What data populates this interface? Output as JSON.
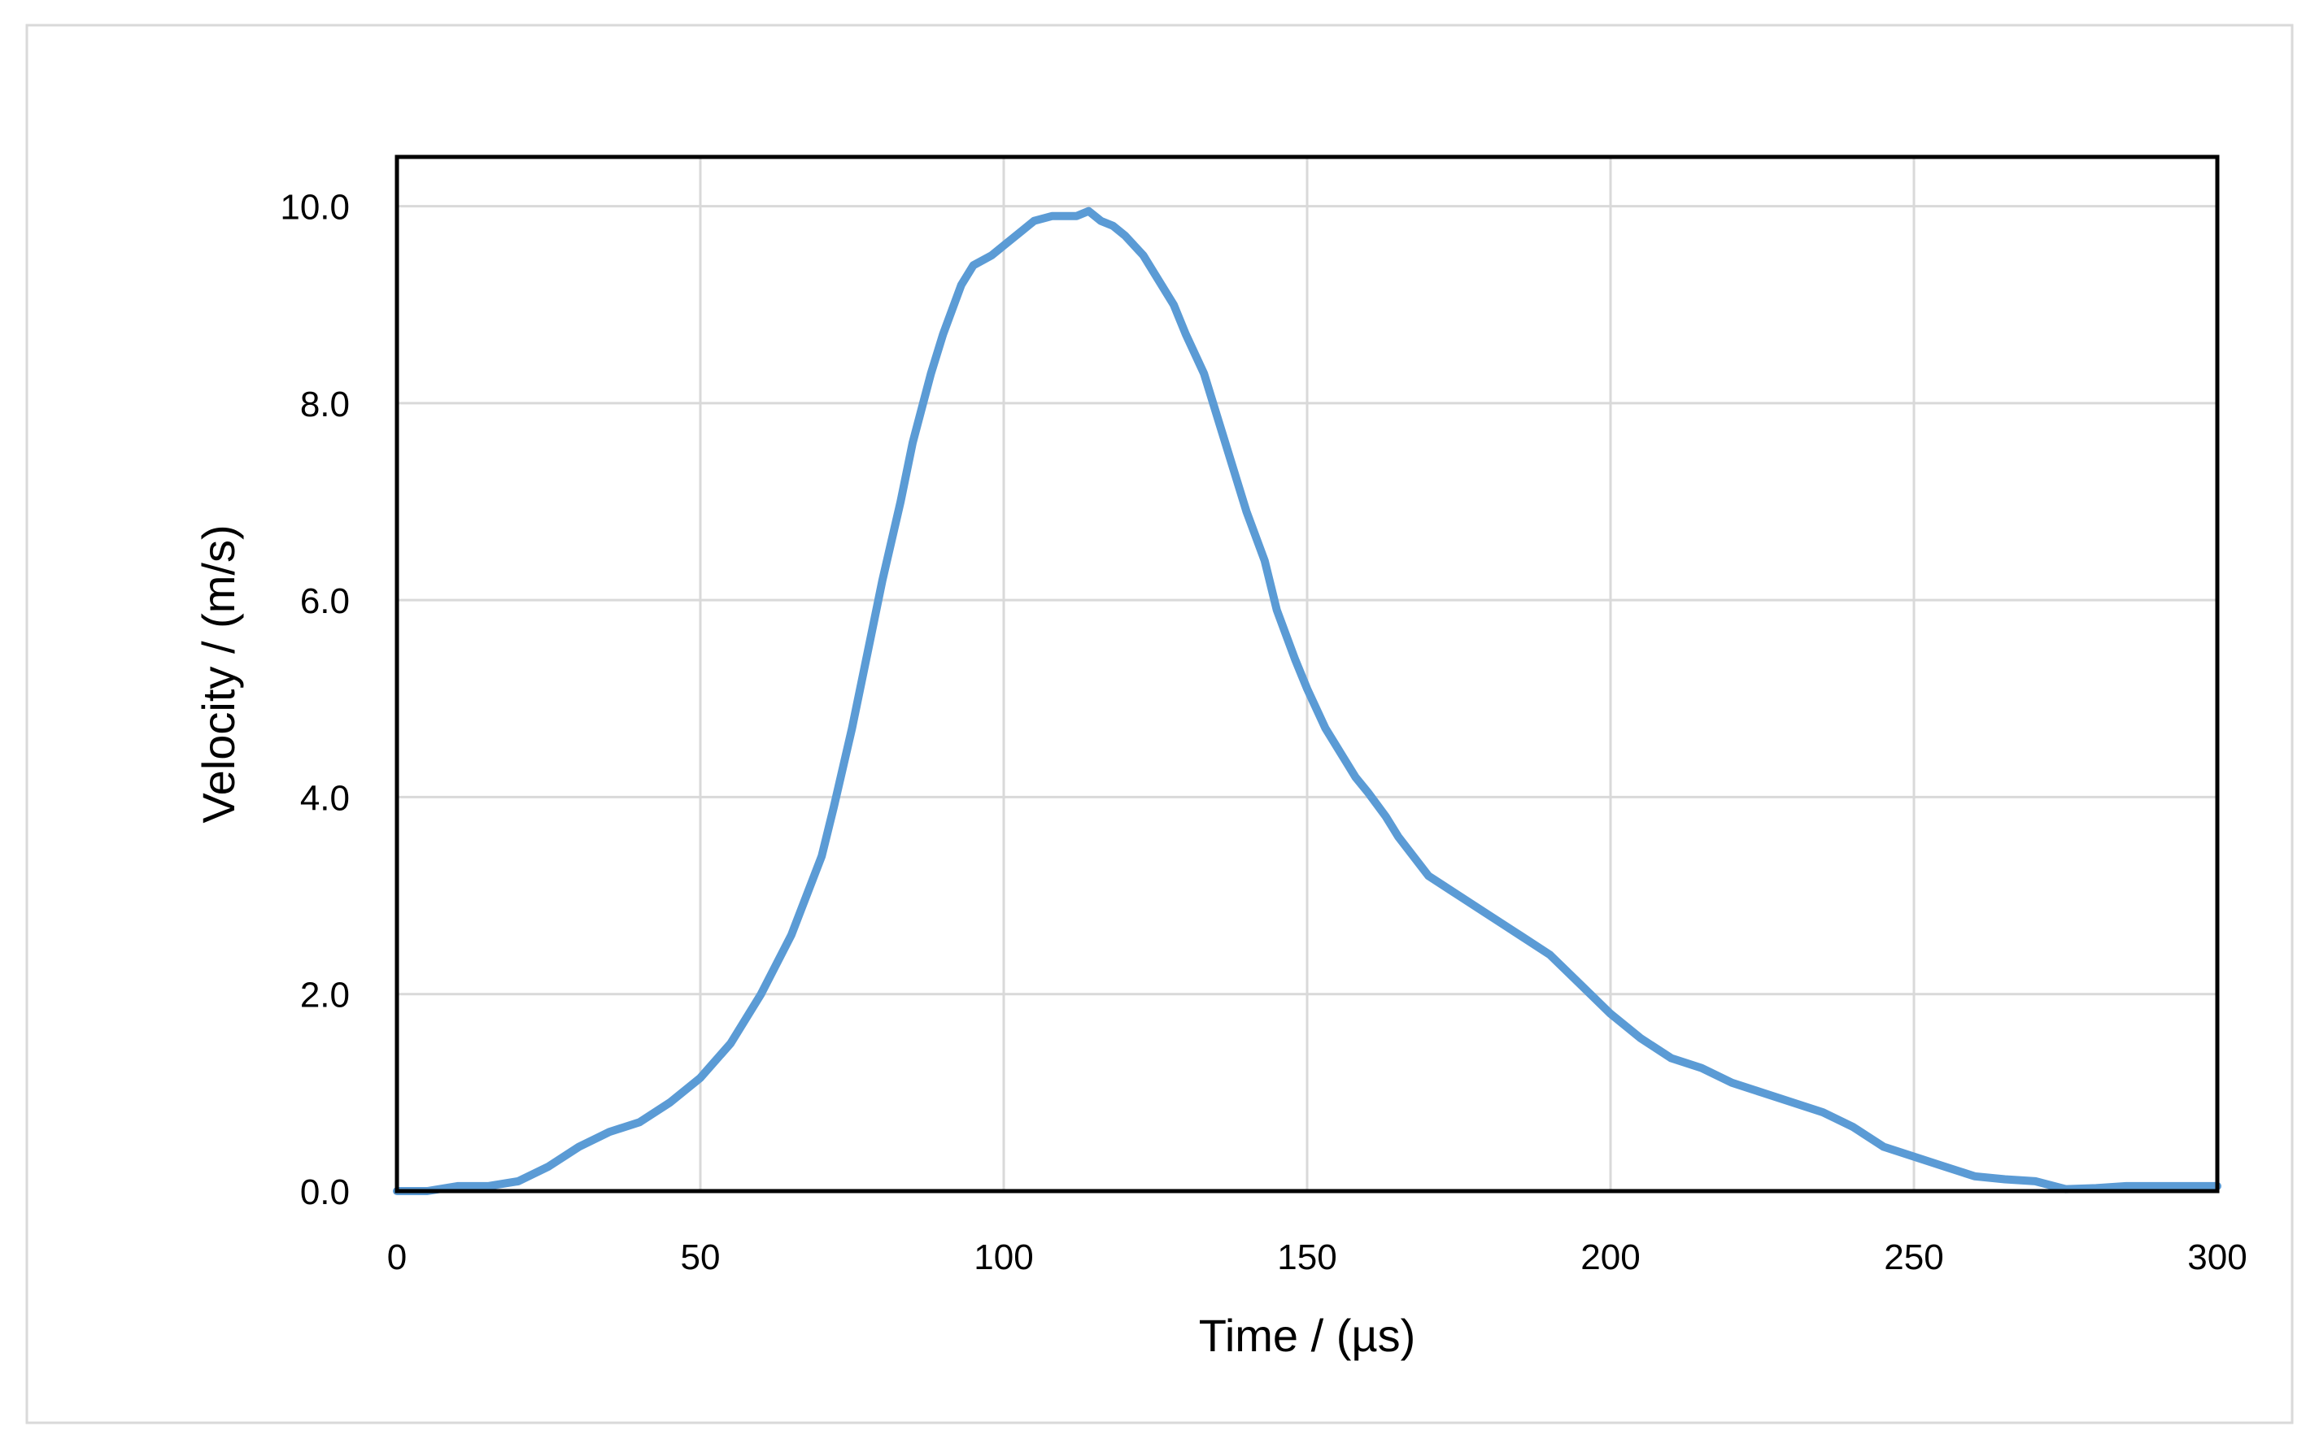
{
  "chart_data": {
    "type": "line",
    "xlabel": "Time / (µs)",
    "ylabel": "Velocity / (m/s)",
    "xlim": [
      0,
      300
    ],
    "ylim": [
      0,
      10.5
    ],
    "x_ticks": [
      0,
      50,
      100,
      150,
      200,
      250,
      300
    ],
    "x_tick_labels": [
      "0",
      "50",
      "100",
      "150",
      "200",
      "250",
      "300"
    ],
    "y_ticks": [
      0,
      2,
      4,
      6,
      8,
      10
    ],
    "y_tick_labels": [
      "0.0",
      "2.0",
      "4.0",
      "6.0",
      "8.0",
      "10.0"
    ],
    "grid": true,
    "legend": "none",
    "series": [
      {
        "color": "#5b9bd5",
        "x": [
          0,
          5,
          10,
          15,
          20,
          25,
          30,
          35,
          40,
          45,
          50,
          55,
          60,
          65,
          70,
          72,
          75,
          78,
          80,
          83,
          85,
          88,
          90,
          93,
          95,
          98,
          100,
          103,
          105,
          108,
          110,
          112,
          114,
          116,
          118,
          120,
          123,
          125,
          128,
          130,
          133,
          135,
          138,
          140,
          143,
          145,
          148,
          150,
          153,
          155,
          158,
          160,
          163,
          165,
          170,
          175,
          180,
          185,
          190,
          195,
          200,
          205,
          210,
          215,
          220,
          225,
          230,
          235,
          240,
          245,
          250,
          255,
          260,
          265,
          270,
          275,
          280,
          285,
          290,
          295,
          300
        ],
        "y": [
          0.0,
          0.0,
          0.05,
          0.05,
          0.1,
          0.25,
          0.45,
          0.6,
          0.7,
          0.9,
          1.15,
          1.5,
          2.0,
          2.6,
          3.4,
          3.9,
          4.7,
          5.6,
          6.2,
          7.0,
          7.6,
          8.3,
          8.7,
          9.2,
          9.4,
          9.5,
          9.6,
          9.75,
          9.85,
          9.9,
          9.9,
          9.9,
          9.95,
          9.85,
          9.8,
          9.7,
          9.5,
          9.3,
          9.0,
          8.7,
          8.3,
          7.9,
          7.3,
          6.9,
          6.4,
          5.9,
          5.4,
          5.1,
          4.7,
          4.5,
          4.2,
          4.05,
          3.8,
          3.6,
          3.2,
          3.0,
          2.8,
          2.6,
          2.4,
          2.1,
          1.8,
          1.55,
          1.35,
          1.25,
          1.1,
          1.0,
          0.9,
          0.8,
          0.65,
          0.45,
          0.35,
          0.25,
          0.15,
          0.12,
          0.1,
          0.02,
          0.03,
          0.05,
          0.05,
          0.05,
          0.05
        ]
      }
    ]
  }
}
